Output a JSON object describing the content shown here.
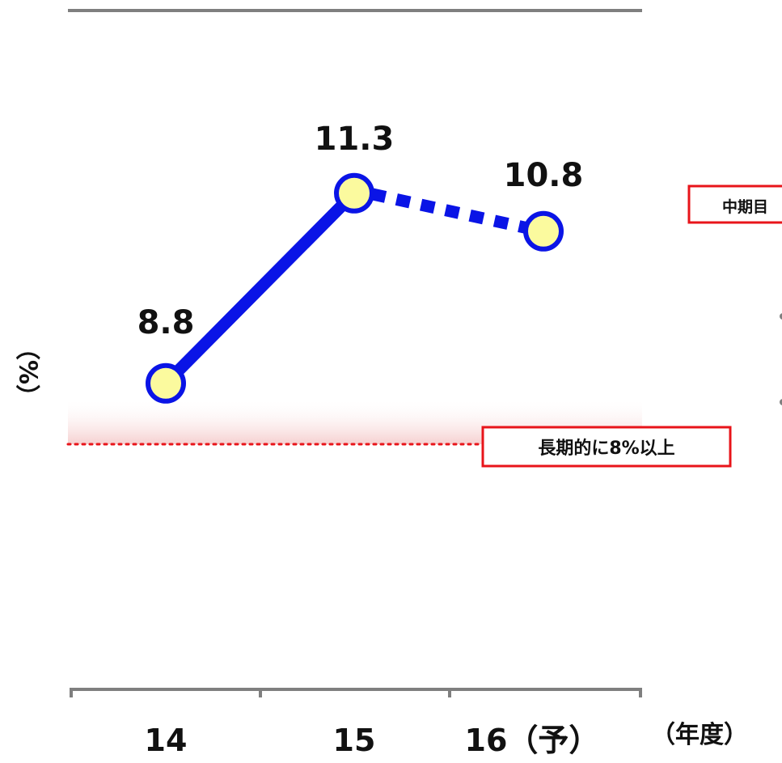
{
  "chart_data": {
    "type": "line",
    "categories": [
      "14",
      "15",
      "16（予）"
    ],
    "series": [
      {
        "values": [
          8.8,
          11.3,
          10.8
        ],
        "projected_from_index": 1
      }
    ],
    "data_labels": [
      "8.8",
      "11.3",
      "10.8"
    ],
    "ylabel": "（%）",
    "xlabel": "（年度）",
    "reference_line": {
      "value": 8,
      "label": "長期的に8%以上",
      "style": "dotted",
      "color": "#e8141a"
    },
    "side_label": "中期目",
    "ylim": [
      2,
      14
    ],
    "grid": false,
    "legend": "none"
  },
  "colors": {
    "line": "#0a14e6",
    "marker_fill": "#fbfa9e",
    "marker_stroke": "#0a14e6",
    "reference": "#e8141a",
    "axis": "#7f7f7f"
  }
}
